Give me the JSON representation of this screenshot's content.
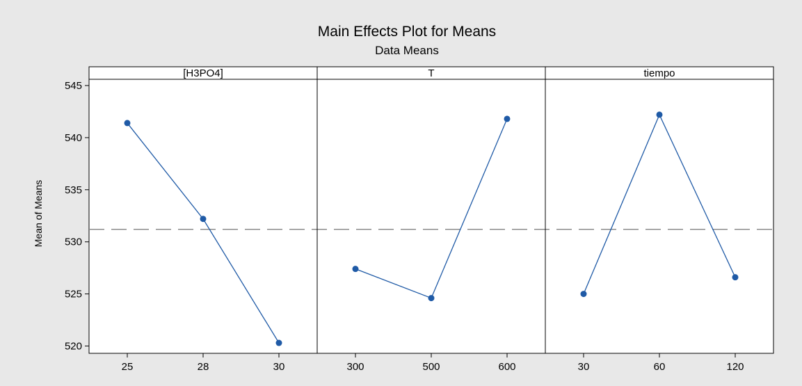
{
  "chart_data": {
    "type": "line",
    "title": "Main Effects Plot for Means",
    "subtitle": "Data Means",
    "ylabel": "Mean of Means",
    "ylim": [
      519.3,
      545.6
    ],
    "yticks": [
      520,
      525,
      530,
      535,
      540,
      545
    ],
    "reference_line": 531.2,
    "grid": false,
    "marker_color": "#1f5aa6",
    "panels": [
      {
        "name": "[H3PO4]",
        "categories": [
          "25",
          "28",
          "30"
        ],
        "values": [
          541.4,
          532.2,
          520.3
        ]
      },
      {
        "name": "T",
        "categories": [
          "300",
          "500",
          "600"
        ],
        "values": [
          527.4,
          524.6,
          541.8
        ]
      },
      {
        "name": "tiempo",
        "categories": [
          "30",
          "60",
          "120"
        ],
        "values": [
          525.0,
          542.2,
          526.6
        ]
      }
    ]
  }
}
